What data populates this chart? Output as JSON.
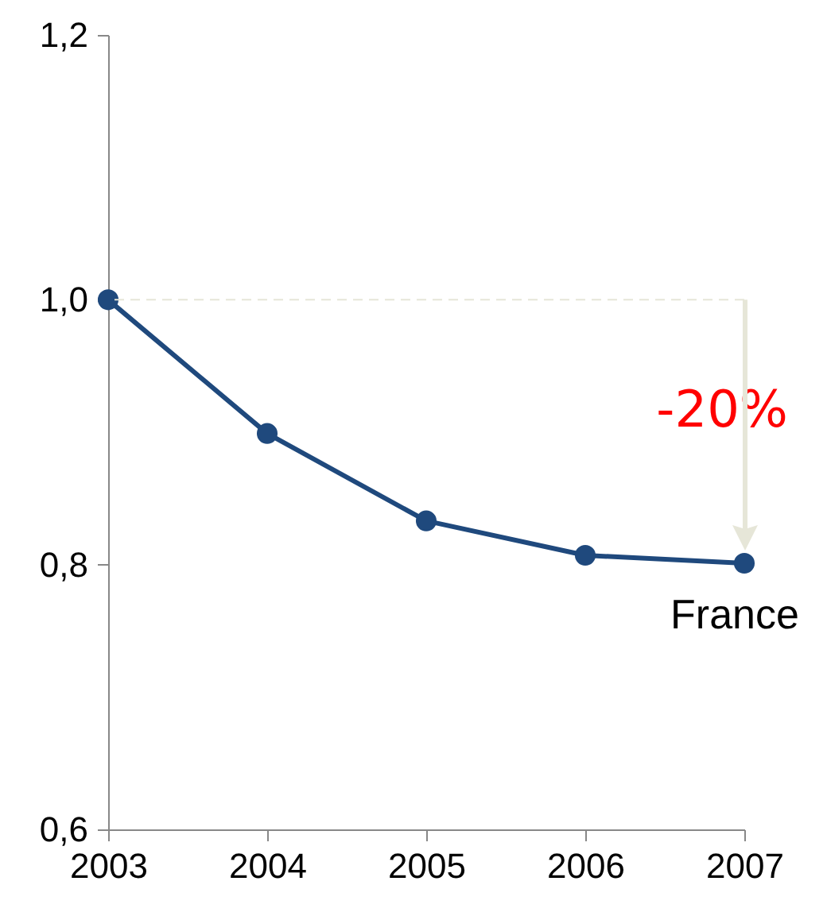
{
  "chart_data": {
    "type": "line",
    "categories": [
      "2003",
      "2004",
      "2005",
      "2006",
      "2007"
    ],
    "series": [
      {
        "name": "France",
        "color": "#1f497d",
        "values": [
          1.0,
          0.899,
          0.833,
          0.807,
          0.801
        ]
      }
    ],
    "ylim": [
      0.6,
      1.2
    ],
    "yticks": [
      {
        "value": 0.6,
        "label": "0,6"
      },
      {
        "value": 0.8,
        "label": "0,8"
      },
      {
        "value": 1.0,
        "label": "1,0"
      },
      {
        "value": 1.2,
        "label": "1,2"
      }
    ],
    "grid": false,
    "marker": "circle",
    "line_style": "solid",
    "ref_lines": [
      {
        "axis": "y",
        "value": 1.0,
        "color": "#e6e6d8",
        "line_style": "dashed"
      }
    ],
    "annotations": [
      "-20%"
    ]
  }
}
